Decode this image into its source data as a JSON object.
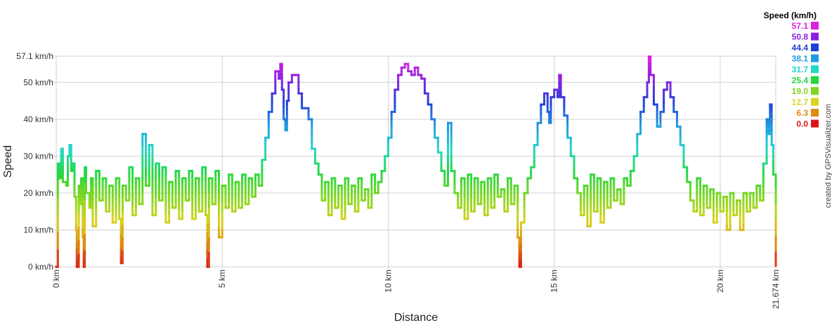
{
  "chart_data": {
    "type": "line",
    "xlabel": "Distance",
    "ylabel": "Speed",
    "credit": "created by GPSVisualizer.com",
    "ylim": [
      0,
      57.1
    ],
    "xlim": [
      0,
      21.674
    ],
    "y_ticks": [
      {
        "value": 0,
        "label": "0 km/h"
      },
      {
        "value": 10,
        "label": "10 km/h"
      },
      {
        "value": 20,
        "label": "20 km/h"
      },
      {
        "value": 30,
        "label": "30 km/h"
      },
      {
        "value": 40,
        "label": "40 km/h"
      },
      {
        "value": 50,
        "label": "50 km/h"
      },
      {
        "value": 57.1,
        "label": "57.1 km/h"
      }
    ],
    "x_ticks": [
      {
        "value": 0,
        "label": "0 km"
      },
      {
        "value": 5,
        "label": "5 km"
      },
      {
        "value": 10,
        "label": "10 km"
      },
      {
        "value": 15,
        "label": "15 km"
      },
      {
        "value": 20,
        "label": "20 km"
      },
      {
        "value": 21.674,
        "label": "21.674 km"
      }
    ],
    "grid": true,
    "legend": {
      "title": "Speed (km/h)",
      "placement": "top-right",
      "entries": [
        {
          "label": "57.1",
          "color": "#e020e0"
        },
        {
          "label": "50.8",
          "color": "#8a1fe0"
        },
        {
          "label": "44.4",
          "color": "#1f3fd8"
        },
        {
          "label": "38.1",
          "color": "#1f9be0"
        },
        {
          "label": "31.7",
          "color": "#22d8c8"
        },
        {
          "label": "25.4",
          "color": "#22d840"
        },
        {
          "label": "19.0",
          "color": "#7ed620"
        },
        {
          "label": "12.7",
          "color": "#d8d420"
        },
        {
          "label": "6.3",
          "color": "#e08a10"
        },
        {
          "label": "0.0",
          "color": "#d81818"
        }
      ]
    },
    "series": [
      {
        "values": [
          [
            0.0,
            0
          ],
          [
            0.05,
            28
          ],
          [
            0.1,
            24
          ],
          [
            0.15,
            32
          ],
          [
            0.2,
            23
          ],
          [
            0.3,
            22
          ],
          [
            0.35,
            30
          ],
          [
            0.4,
            33
          ],
          [
            0.45,
            26
          ],
          [
            0.5,
            28
          ],
          [
            0.55,
            19
          ],
          [
            0.6,
            10
          ],
          [
            0.62,
            0
          ],
          [
            0.68,
            22
          ],
          [
            0.7,
            17
          ],
          [
            0.75,
            24
          ],
          [
            0.8,
            8
          ],
          [
            0.83,
            0
          ],
          [
            0.86,
            27
          ],
          [
            0.9,
            20
          ],
          [
            1.0,
            16
          ],
          [
            1.05,
            24
          ],
          [
            1.1,
            11
          ],
          [
            1.2,
            26
          ],
          [
            1.3,
            18
          ],
          [
            1.4,
            24
          ],
          [
            1.5,
            15
          ],
          [
            1.6,
            22
          ],
          [
            1.7,
            12
          ],
          [
            1.8,
            24
          ],
          [
            1.9,
            13
          ],
          [
            1.95,
            1
          ],
          [
            2.0,
            22
          ],
          [
            2.1,
            18
          ],
          [
            2.2,
            27
          ],
          [
            2.3,
            14
          ],
          [
            2.4,
            24
          ],
          [
            2.5,
            17
          ],
          [
            2.6,
            36
          ],
          [
            2.7,
            22
          ],
          [
            2.8,
            33
          ],
          [
            2.9,
            14
          ],
          [
            3.0,
            28
          ],
          [
            3.1,
            18
          ],
          [
            3.2,
            27
          ],
          [
            3.3,
            12
          ],
          [
            3.4,
            23
          ],
          [
            3.5,
            16
          ],
          [
            3.6,
            26
          ],
          [
            3.7,
            13
          ],
          [
            3.8,
            24
          ],
          [
            3.9,
            18
          ],
          [
            4.0,
            26
          ],
          [
            4.1,
            13
          ],
          [
            4.2,
            24
          ],
          [
            4.3,
            15
          ],
          [
            4.4,
            27
          ],
          [
            4.5,
            14
          ],
          [
            4.55,
            0
          ],
          [
            4.6,
            24
          ],
          [
            4.7,
            17
          ],
          [
            4.8,
            26
          ],
          [
            4.9,
            8
          ],
          [
            5.0,
            22
          ],
          [
            5.1,
            16
          ],
          [
            5.2,
            25
          ],
          [
            5.3,
            15
          ],
          [
            5.4,
            23
          ],
          [
            5.5,
            16
          ],
          [
            5.6,
            25
          ],
          [
            5.7,
            17
          ],
          [
            5.8,
            24
          ],
          [
            5.9,
            19
          ],
          [
            6.0,
            25
          ],
          [
            6.1,
            22
          ],
          [
            6.2,
            29
          ],
          [
            6.3,
            35
          ],
          [
            6.4,
            42
          ],
          [
            6.5,
            47
          ],
          [
            6.6,
            53
          ],
          [
            6.7,
            51
          ],
          [
            6.75,
            55
          ],
          [
            6.8,
            48
          ],
          [
            6.85,
            40
          ],
          [
            6.9,
            37
          ],
          [
            6.95,
            45
          ],
          [
            7.0,
            50
          ],
          [
            7.1,
            52
          ],
          [
            7.2,
            52
          ],
          [
            7.3,
            47
          ],
          [
            7.4,
            43
          ],
          [
            7.5,
            43
          ],
          [
            7.6,
            40
          ],
          [
            7.7,
            32
          ],
          [
            7.8,
            28
          ],
          [
            7.9,
            25
          ],
          [
            8.0,
            18
          ],
          [
            8.1,
            23
          ],
          [
            8.2,
            14
          ],
          [
            8.3,
            24
          ],
          [
            8.4,
            16
          ],
          [
            8.5,
            22
          ],
          [
            8.6,
            13
          ],
          [
            8.7,
            24
          ],
          [
            8.8,
            17
          ],
          [
            8.9,
            22
          ],
          [
            9.0,
            15
          ],
          [
            9.1,
            24
          ],
          [
            9.2,
            18
          ],
          [
            9.3,
            21
          ],
          [
            9.4,
            16
          ],
          [
            9.5,
            25
          ],
          [
            9.6,
            20
          ],
          [
            9.7,
            23
          ],
          [
            9.8,
            26
          ],
          [
            9.9,
            30
          ],
          [
            10.0,
            35
          ],
          [
            10.1,
            42
          ],
          [
            10.2,
            48
          ],
          [
            10.3,
            52
          ],
          [
            10.4,
            54
          ],
          [
            10.5,
            55
          ],
          [
            10.6,
            53
          ],
          [
            10.7,
            52
          ],
          [
            10.8,
            54
          ],
          [
            10.9,
            52
          ],
          [
            11.0,
            51
          ],
          [
            11.1,
            47
          ],
          [
            11.2,
            44
          ],
          [
            11.3,
            40
          ],
          [
            11.4,
            35
          ],
          [
            11.5,
            31
          ],
          [
            11.6,
            26
          ],
          [
            11.7,
            22
          ],
          [
            11.8,
            39
          ],
          [
            11.9,
            26
          ],
          [
            12.0,
            20
          ],
          [
            12.1,
            16
          ],
          [
            12.2,
            24
          ],
          [
            12.3,
            13
          ],
          [
            12.4,
            25
          ],
          [
            12.5,
            15
          ],
          [
            12.6,
            24
          ],
          [
            12.7,
            17
          ],
          [
            12.8,
            23
          ],
          [
            12.9,
            14
          ],
          [
            13.0,
            24
          ],
          [
            13.1,
            16
          ],
          [
            13.2,
            25
          ],
          [
            13.3,
            19
          ],
          [
            13.4,
            21
          ],
          [
            13.5,
            15
          ],
          [
            13.6,
            24
          ],
          [
            13.7,
            17
          ],
          [
            13.8,
            22
          ],
          [
            13.9,
            8
          ],
          [
            13.95,
            0
          ],
          [
            14.0,
            12
          ],
          [
            14.1,
            20
          ],
          [
            14.2,
            24
          ],
          [
            14.3,
            27
          ],
          [
            14.4,
            33
          ],
          [
            14.5,
            39
          ],
          [
            14.6,
            44
          ],
          [
            14.7,
            47
          ],
          [
            14.8,
            42
          ],
          [
            14.85,
            39
          ],
          [
            14.9,
            46
          ],
          [
            15.0,
            48
          ],
          [
            15.1,
            46
          ],
          [
            15.15,
            52
          ],
          [
            15.2,
            46
          ],
          [
            15.3,
            41
          ],
          [
            15.4,
            35
          ],
          [
            15.5,
            30
          ],
          [
            15.6,
            24
          ],
          [
            15.7,
            20
          ],
          [
            15.8,
            14
          ],
          [
            15.9,
            22
          ],
          [
            16.0,
            11
          ],
          [
            16.1,
            25
          ],
          [
            16.2,
            15
          ],
          [
            16.3,
            24
          ],
          [
            16.4,
            12
          ],
          [
            16.5,
            23
          ],
          [
            16.6,
            16
          ],
          [
            16.7,
            24
          ],
          [
            16.8,
            18
          ],
          [
            16.9,
            21
          ],
          [
            17.0,
            17
          ],
          [
            17.1,
            24
          ],
          [
            17.2,
            22
          ],
          [
            17.3,
            26
          ],
          [
            17.4,
            30
          ],
          [
            17.5,
            36
          ],
          [
            17.6,
            42
          ],
          [
            17.7,
            46
          ],
          [
            17.8,
            50
          ],
          [
            17.85,
            57
          ],
          [
            17.9,
            52
          ],
          [
            18.0,
            44
          ],
          [
            18.1,
            38
          ],
          [
            18.2,
            42
          ],
          [
            18.3,
            48
          ],
          [
            18.4,
            50
          ],
          [
            18.5,
            46
          ],
          [
            18.6,
            42
          ],
          [
            18.7,
            38
          ],
          [
            18.8,
            33
          ],
          [
            18.9,
            27
          ],
          [
            19.0,
            23
          ],
          [
            19.1,
            18
          ],
          [
            19.2,
            15
          ],
          [
            19.3,
            24
          ],
          [
            19.4,
            14
          ],
          [
            19.5,
            22
          ],
          [
            19.6,
            16
          ],
          [
            19.7,
            21
          ],
          [
            19.8,
            12
          ],
          [
            19.9,
            20
          ],
          [
            20.0,
            15
          ],
          [
            20.1,
            19
          ],
          [
            20.2,
            10
          ],
          [
            20.3,
            20
          ],
          [
            20.4,
            14
          ],
          [
            20.5,
            18
          ],
          [
            20.6,
            10
          ],
          [
            20.7,
            20
          ],
          [
            20.8,
            15
          ],
          [
            20.9,
            20
          ],
          [
            21.0,
            16
          ],
          [
            21.1,
            22
          ],
          [
            21.2,
            18
          ],
          [
            21.3,
            28
          ],
          [
            21.4,
            40
          ],
          [
            21.45,
            36
          ],
          [
            21.5,
            44
          ],
          [
            21.55,
            33
          ],
          [
            21.6,
            25
          ],
          [
            21.674,
            0
          ]
        ]
      }
    ]
  }
}
